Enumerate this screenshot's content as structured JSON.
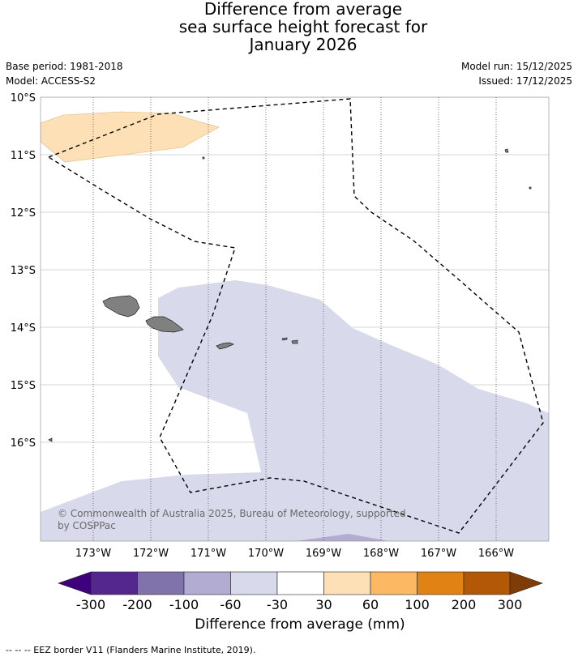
{
  "title": {
    "line1": "Difference from average",
    "line2": "sea surface height forecast for",
    "line3": "January 2026"
  },
  "meta": {
    "base_period": "Base period: 1981-2018",
    "model": "Model: ACCESS-S2",
    "model_run": "Model run: 15/12/2025",
    "issued": "Issued: 17/12/2025"
  },
  "map": {
    "lon_range": [
      -173.9,
      -165.1
    ],
    "lat_range": [
      -17.7,
      -9.95
    ],
    "lat_ticks": [
      "10°S",
      "11°S",
      "12°S",
      "13°S",
      "14°S",
      "15°S",
      "16°S"
    ],
    "lon_ticks": [
      "173°W",
      "172°W",
      "171°W",
      "170°W",
      "169°W",
      "168°W",
      "167°W",
      "166°W"
    ],
    "copyright_line1": "© Commonwealth of Australia 2025, Bureau of Meteorology, supported",
    "copyright_line2": "by COSPPac",
    "land_color": "#808080",
    "eez_border": "dashed"
  },
  "colorbar": {
    "title": "Difference from average (mm)",
    "tick_labels": [
      "-300",
      "-200",
      "-100",
      "-60",
      "-30",
      "30",
      "60",
      "100",
      "200",
      "300"
    ],
    "colors": [
      "#3f007d",
      "#54278f",
      "#8073ac",
      "#b2abd2",
      "#d8daeb",
      "#ffffff",
      "#fee0b6",
      "#fdb863",
      "#e08214",
      "#b35806",
      "#7f3b08"
    ]
  },
  "footnote": "--  --  -- EEZ border V11 (Flanders Marine Institute, 2019)."
}
